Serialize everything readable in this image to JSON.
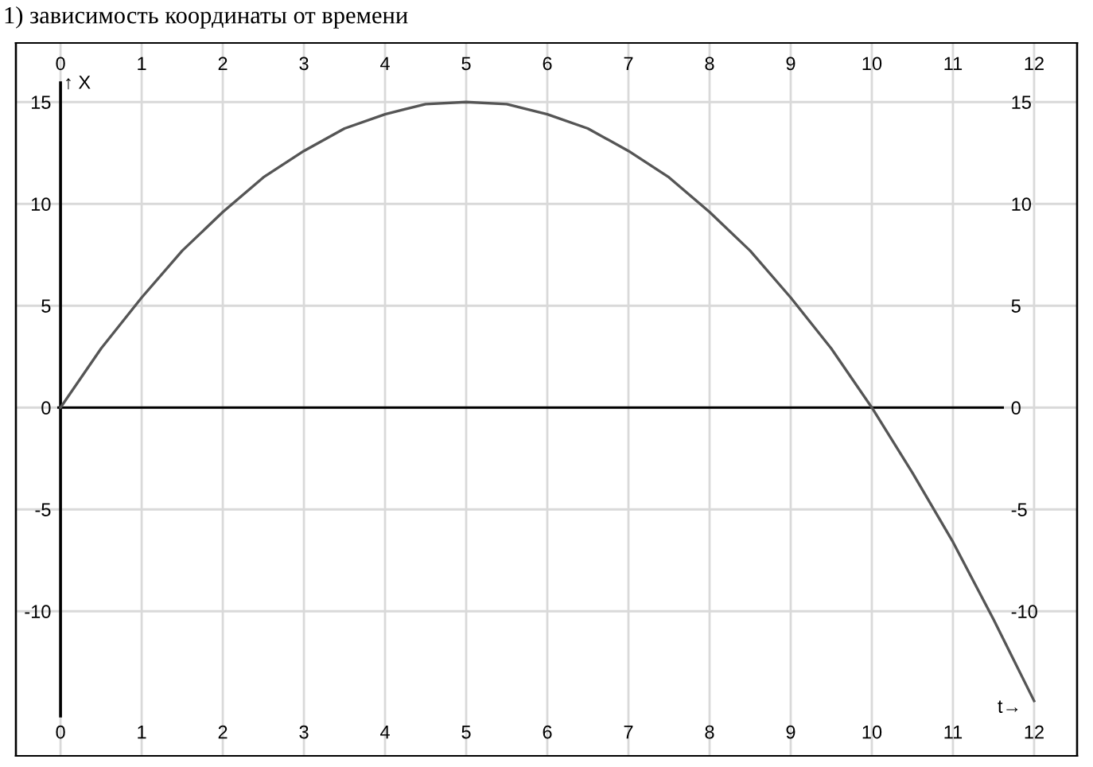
{
  "chart_data": {
    "type": "line",
    "title": "1) зависимость координаты от времени",
    "xlabel": "t→",
    "ylabel": "↑ X",
    "x": [
      0,
      0.5,
      1,
      1.5,
      2,
      2.5,
      3,
      3.5,
      4,
      4.5,
      5,
      5.5,
      6,
      6.5,
      7,
      7.5,
      8,
      8.5,
      9,
      9.5,
      10,
      10.5,
      11,
      11.5,
      12
    ],
    "series": [
      {
        "color": "#555555",
        "values": [
          0,
          2.9,
          5.4,
          7.7,
          9.6,
          11.3,
          12.6,
          13.7,
          14.4,
          14.9,
          15,
          14.9,
          14.4,
          13.7,
          12.6,
          11.3,
          9.6,
          7.7,
          5.4,
          2.9,
          0,
          -3.2,
          -6.6,
          -10.4,
          -14.4
        ]
      }
    ],
    "xlim": [
      -0.55,
      12.53
    ],
    "xticks": [
      0,
      1,
      2,
      3,
      4,
      5,
      6,
      7,
      8,
      9,
      10,
      11,
      12
    ],
    "x2lim": [
      -0.55,
      12.53
    ],
    "x2ticks": [
      0,
      1,
      2,
      3,
      4,
      5,
      6,
      7,
      8,
      9,
      10,
      11,
      12
    ],
    "ylim": [
      -17.1,
      17.9
    ],
    "yticks": [
      -10,
      -5,
      0,
      5,
      10,
      15
    ],
    "y2lim": [
      -17.1,
      17.9
    ],
    "y2ticks": [
      -10,
      -5,
      0,
      5,
      10,
      15
    ],
    "grid": true,
    "marker": "none",
    "line_style": "solid",
    "legend": false
  }
}
